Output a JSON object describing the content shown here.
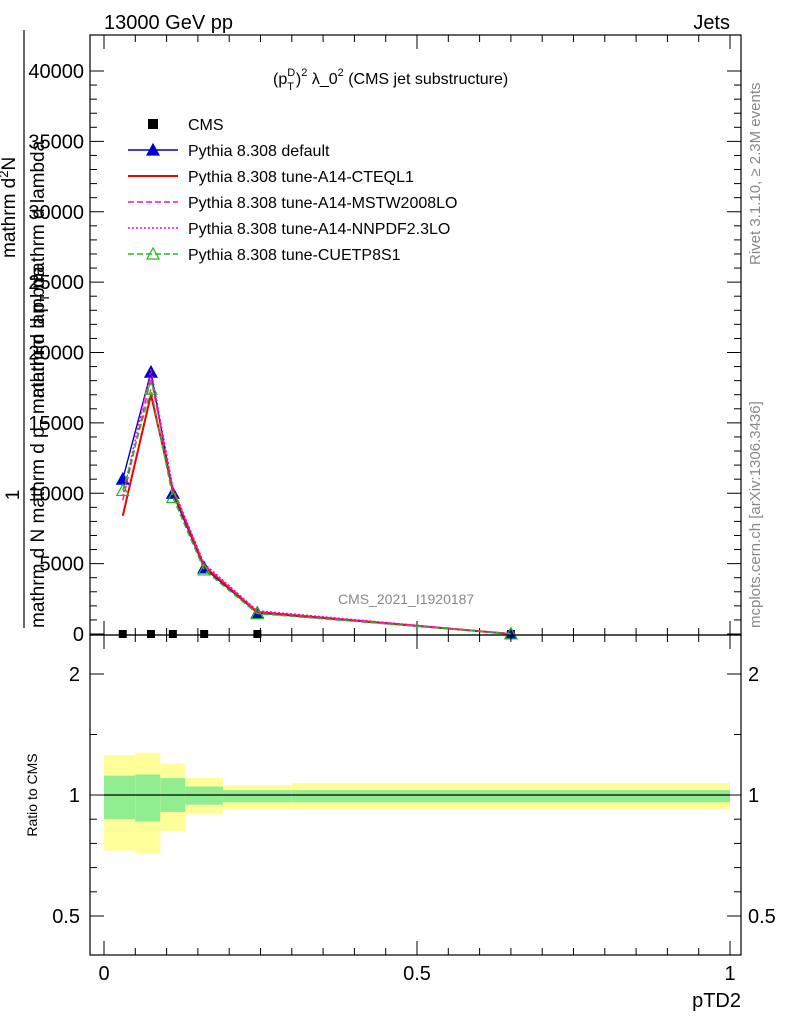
{
  "header": {
    "left": "13000 GeV pp",
    "right": "Jets"
  },
  "side_labels": {
    "rivet": "Rivet 3.1.10, ≥ 2.3M events",
    "mcplots": "mcplots.cern.ch [arXiv:1306.3436]"
  },
  "watermark": "CMS_2021_I1920187",
  "chart_data": [
    {
      "type": "line",
      "title": "(p_T^D)^2 λ_0^2 (CMS jet substructure)",
      "title_parts": {
        "a": "(p",
        "sup1": "D",
        "sub1": "T",
        "b": ")",
        "sup2": "2",
        "c": " λ_0",
        "sup3": "2",
        "d": " (CMS jet substructure)"
      },
      "ylabel_lines": [
        "1",
        "mathrm d N",
        "mathrm d p_mathrm d p_T mathrm d lambda",
        "mathrm d^N"
      ],
      "ylabel_parts": {
        "one": "1",
        "den": "mathrm d N  mathrm d p",
        "den_sub": "T",
        "den_rest": " mathrm d lambda",
        "num": "mathrm d",
        "num_sup": "2",
        "num_rest": "N",
        "mid": "mathrm d p",
        "mid_sub": "T",
        "mid_rest": " mathrm d lambda"
      },
      "xlabel": "pTD2",
      "xlim": [
        0,
        1
      ],
      "ylim": [
        0,
        40000
      ],
      "yticks": [
        0,
        5000,
        10000,
        15000,
        20000,
        25000,
        30000,
        35000,
        40000
      ],
      "ytick_labels": [
        "0",
        "5000",
        "10000",
        "15000",
        "20000",
        "25000",
        "30000",
        "35000",
        "40000"
      ],
      "legend_position": "top-left",
      "series": [
        {
          "name": "CMS",
          "color": "#000000",
          "style": "markers",
          "x": [
            0.03,
            0.075,
            0.11,
            0.16,
            0.245,
            0.65
          ],
          "y": [
            1,
            1,
            1,
            1,
            1,
            1
          ]
        },
        {
          "name": "Pythia 8.308 default",
          "color": "#0000cc",
          "style": "solid-triangle",
          "x": [
            0.03,
            0.075,
            0.11,
            0.16,
            0.245,
            0.65
          ],
          "y": [
            11000,
            18600,
            10000,
            4700,
            1500,
            10
          ]
        },
        {
          "name": "Pythia 8.308 tune-A14-CTEQL1",
          "color": "#ee0000",
          "style": "solid",
          "x": [
            0.03,
            0.075,
            0.11,
            0.16,
            0.245,
            0.65
          ],
          "y": [
            8400,
            17000,
            10200,
            4800,
            1550,
            10
          ]
        },
        {
          "name": "Pythia 8.308 tune-A14-MSTW2008LO",
          "color": "#ff1493",
          "style": "dashed",
          "x": [
            0.03,
            0.075,
            0.11,
            0.16,
            0.245,
            0.65
          ],
          "y": [
            9500,
            18200,
            10300,
            4900,
            1600,
            10
          ]
        },
        {
          "name": "Pythia 8.308 tune-A14-NNPDF2.3LO",
          "color": "#ff00cc",
          "style": "dotted",
          "x": [
            0.03,
            0.075,
            0.11,
            0.16,
            0.245,
            0.65
          ],
          "y": [
            9800,
            18800,
            10400,
            5000,
            1650,
            10
          ]
        },
        {
          "name": "Pythia 8.308 tune-CUETP8S1",
          "color": "#22bb22",
          "style": "dashed-open-triangle",
          "x": [
            0.03,
            0.075,
            0.11,
            0.16,
            0.245,
            0.65
          ],
          "y": [
            10200,
            17400,
            9700,
            4550,
            1450,
            10
          ]
        }
      ]
    },
    {
      "type": "area",
      "ylabel": "Ratio to CMS",
      "xlabel": "pTD2",
      "xlim": [
        0,
        1
      ],
      "ylim": [
        0.4,
        2.4
      ],
      "yticks": [
        0.5,
        1,
        2
      ],
      "ytick_labels": [
        "0.5",
        "1",
        "2"
      ],
      "xticks": [
        0,
        0.5,
        1
      ],
      "xtick_labels": [
        "0",
        "0.5",
        "1"
      ],
      "bin_edges": [
        0,
        0.05,
        0.09,
        0.13,
        0.19,
        0.3,
        1.0
      ],
      "green_band": {
        "color": "#90ee90",
        "lo": [
          0.9,
          0.89,
          0.93,
          0.96,
          0.97,
          0.97
        ],
        "hi": [
          1.16,
          1.17,
          1.14,
          1.07,
          1.04,
          1.04
        ]
      },
      "yellow_band": {
        "color": "#ffff99",
        "lo": [
          0.77,
          0.76,
          0.85,
          0.92,
          0.94,
          0.94
        ],
        "hi": [
          1.33,
          1.35,
          1.26,
          1.14,
          1.08,
          1.1
        ]
      },
      "reference_line": 1
    }
  ]
}
